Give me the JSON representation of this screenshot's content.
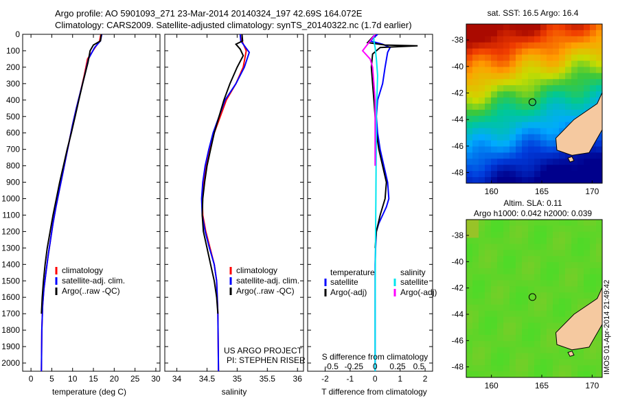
{
  "header": {
    "line1": "Argo profile: AO 5901093_271 23-Mar-2014 20140324_197 42.69S 164.072E",
    "line2": "Climatology: CARS2009. Satellite-adjusted climatology: synTS_20140322.nc (1.7d earlier)"
  },
  "colors": {
    "climatology": "#ff0000",
    "satellite": "#0000ff",
    "argo": "#000000",
    "sal_satellite": "#00e5ee",
    "sal_argo": "#ff00ff"
  },
  "footer": {
    "stamp": "IMOS 01-Apr-2014 21:49:42",
    "project": "US ARGO PROJECT",
    "pi": "PI: STEPHEN RISER"
  },
  "chart_data": [
    {
      "type": "line",
      "id": "temperature",
      "xlabel": "temperature (deg C)",
      "ylabel": "",
      "xlim": [
        -2,
        31
      ],
      "ylim": [
        2050,
        0
      ],
      "xticks": [
        0,
        5,
        10,
        15,
        20,
        25,
        30
      ],
      "yticks": [
        0,
        100,
        200,
        300,
        400,
        500,
        600,
        700,
        800,
        900,
        1000,
        1100,
        1200,
        1300,
        1400,
        1500,
        1600,
        1700,
        1800,
        1900,
        2000
      ],
      "legend": [
        "climatology",
        "satellite-adj. clim.",
        "Argo(..raw -QC)"
      ],
      "series": [
        {
          "name": "climatology",
          "color": "#ff0000",
          "x": [
            16.8,
            16.5,
            15.4,
            13.6,
            12.8,
            11.9,
            10.9,
            10.0,
            9.2,
            8.4,
            7.6,
            6.8,
            6.0,
            5.3,
            4.7,
            4.1,
            3.6,
            3.1,
            2.8,
            2.6,
            2.5
          ],
          "y": [
            0,
            40,
            80,
            150,
            250,
            350,
            450,
            550,
            650,
            750,
            850,
            950,
            1050,
            1150,
            1250,
            1350,
            1450,
            1550,
            1650,
            1800,
            2050
          ]
        },
        {
          "name": "satellite-adj. clim.",
          "color": "#0000ff",
          "x": [
            17.0,
            16.7,
            15.3,
            13.8,
            12.9,
            11.9,
            10.9,
            10.0,
            9.2,
            8.4,
            7.6,
            6.8,
            6.0,
            5.3,
            4.7,
            4.1,
            3.6,
            3.1,
            2.8,
            2.6,
            2.5
          ],
          "y": [
            0,
            40,
            80,
            150,
            250,
            350,
            450,
            550,
            650,
            750,
            850,
            950,
            1050,
            1150,
            1250,
            1350,
            1450,
            1550,
            1650,
            1800,
            2050
          ]
        },
        {
          "name": "Argo(..raw -QC)",
          "color": "#000000",
          "x": [
            16.9,
            16.7,
            15.0,
            14.2,
            13.7,
            12.6,
            11.5,
            10.6,
            9.7,
            8.7,
            7.8,
            6.9,
            6.1,
            5.3,
            4.6,
            3.9,
            3.4,
            3.0,
            2.7,
            2.5
          ],
          "y": [
            0,
            40,
            65,
            100,
            170,
            280,
            400,
            500,
            600,
            700,
            800,
            900,
            1000,
            1100,
            1200,
            1300,
            1400,
            1500,
            1600,
            1700
          ]
        }
      ]
    },
    {
      "type": "line",
      "id": "salinity",
      "xlabel": "salinity",
      "ylabel": "",
      "xlim": [
        33.8,
        36.1
      ],
      "ylim": [
        2050,
        0
      ],
      "xticks": [
        34,
        34.5,
        35,
        35.5,
        36
      ],
      "legend": [
        "climatology",
        "satellite-adj. clim.",
        "Argo(..raw -QC)"
      ],
      "series": [
        {
          "name": "climatology",
          "color": "#ff0000",
          "x": [
            35.08,
            35.08,
            35.15,
            35.1,
            34.98,
            34.82,
            34.72,
            34.62,
            34.55,
            34.48,
            34.44,
            34.42,
            34.43,
            34.48,
            34.55,
            34.62,
            34.66,
            34.68,
            34.69
          ],
          "y": [
            0,
            40,
            100,
            200,
            300,
            400,
            500,
            600,
            700,
            800,
            900,
            1000,
            1100,
            1200,
            1300,
            1400,
            1500,
            1700,
            2050
          ]
        },
        {
          "name": "satellite-adj. clim.",
          "color": "#0000ff",
          "x": [
            35.05,
            35.06,
            35.2,
            35.12,
            34.98,
            34.8,
            34.7,
            34.6,
            34.53,
            34.47,
            34.43,
            34.41,
            34.42,
            34.47,
            34.54,
            34.62,
            34.66,
            34.68,
            34.69
          ],
          "y": [
            0,
            40,
            110,
            200,
            300,
            400,
            500,
            600,
            700,
            800,
            900,
            1000,
            1100,
            1200,
            1300,
            1400,
            1500,
            1700,
            2050
          ]
        },
        {
          "name": "Argo(..raw -QC)",
          "color": "#000000",
          "x": [
            35.08,
            35.09,
            34.98,
            35.05,
            35.1,
            35.0,
            34.88,
            34.78,
            34.7,
            34.62,
            34.56,
            34.5,
            34.46,
            34.43,
            34.42,
            34.44,
            34.5,
            34.56,
            34.62,
            34.66,
            34.68
          ],
          "y": [
            0,
            40,
            60,
            90,
            130,
            200,
            300,
            400,
            500,
            600,
            700,
            800,
            900,
            1000,
            1100,
            1200,
            1300,
            1400,
            1500,
            1600,
            1700
          ]
        }
      ]
    },
    {
      "type": "line",
      "id": "difference",
      "xlabel": "T difference from climatology",
      "top_xlabel": "S difference from climatology",
      "xlim": [
        -2.7,
        2.3
      ],
      "ylim": [
        2050,
        0
      ],
      "xticks": [
        -2,
        -1,
        0,
        1,
        2
      ],
      "top_ticks": [
        {
          "x": -1.75,
          "label": "-0.5"
        },
        {
          "x": -0.85,
          "label": "-0.25"
        },
        {
          "x": 0,
          "label": "0"
        },
        {
          "x": 0.9,
          "label": "0.25"
        },
        {
          "x": 1.75,
          "label": "0.5"
        }
      ],
      "legend_temperature": {
        "title": "temperature",
        "items": [
          "satellite",
          "Argo(-adj)"
        ]
      },
      "legend_salinity": {
        "title": "salinity",
        "items": [
          "satellite",
          "Argo(-adj)"
        ]
      },
      "series": [
        {
          "name": "temperature satellite",
          "color": "#0000ff",
          "x": [
            0.1,
            -0.2,
            0.3,
            0.6,
            0.5,
            0.4,
            0.3,
            0.1,
            0.05,
            0.1,
            0.2,
            0.35,
            0.5,
            0.55,
            0.45,
            0.3,
            0.15,
            0.05,
            0.02,
            0.0,
            0.0,
            0.0
          ],
          "y": [
            0,
            40,
            60,
            80,
            110,
            200,
            300,
            400,
            500,
            600,
            700,
            800,
            900,
            1000,
            1050,
            1100,
            1150,
            1200,
            1300,
            1400,
            1700,
            2050
          ]
        },
        {
          "name": "temperature Argo(-adj)",
          "color": "#000000",
          "x": [
            0.0,
            -0.3,
            0.4,
            1.7,
            0.2,
            -0.1,
            -0.15,
            -0.1,
            -0.05,
            0.0,
            0.05,
            0.15,
            0.3,
            0.45,
            0.4,
            0.2,
            0.05,
            0.0
          ],
          "y": [
            0,
            50,
            65,
            70,
            80,
            120,
            200,
            300,
            400,
            500,
            600,
            700,
            800,
            900,
            1000,
            1100,
            1200,
            1300
          ]
        },
        {
          "name": "salinity satellite",
          "color": "#00e5ee",
          "x": [
            -0.05,
            -0.05,
            0.0,
            0.05,
            0.1,
            0.08,
            0.05,
            0.05,
            0.04,
            0.03,
            0.02,
            0.01,
            0.0,
            0.0
          ],
          "y": [
            0,
            40,
            80,
            150,
            250,
            350,
            450,
            600,
            800,
            1000,
            1200,
            1400,
            1700,
            2050
          ]
        },
        {
          "name": "salinity Argo(-adj)",
          "color": "#ff00ff",
          "x": [
            0.0,
            -0.3,
            -0.5,
            -0.2,
            -0.1,
            -0.05,
            0.0,
            0.0,
            0.0
          ],
          "y": [
            0,
            60,
            100,
            150,
            200,
            300,
            400,
            600,
            800
          ]
        }
      ]
    },
    {
      "type": "heatmap",
      "id": "sst-map",
      "title": "sat. SST: 16.5 Argo: 16.4",
      "xticks": [
        160,
        165,
        170
      ],
      "yticks": [
        -38,
        -40,
        -42,
        -44,
        -46,
        -48
      ],
      "xlim": [
        157.5,
        171
      ],
      "ylim": [
        -48.8,
        -36.8
      ],
      "marker": {
        "lon": 164.07,
        "lat": -42.69
      }
    },
    {
      "type": "heatmap",
      "id": "sla-map",
      "title": "Altim. SLA: 0.11",
      "subtitle": "Argo h1000: 0.042 h2000: 0.039",
      "xticks": [
        160,
        165,
        170
      ],
      "yticks": [
        -38,
        -40,
        -42,
        -44,
        -46,
        -48
      ],
      "xlim": [
        157.5,
        171
      ],
      "ylim": [
        -48.8,
        -36.8
      ],
      "marker": {
        "lon": 164.07,
        "lat": -42.69
      }
    }
  ]
}
